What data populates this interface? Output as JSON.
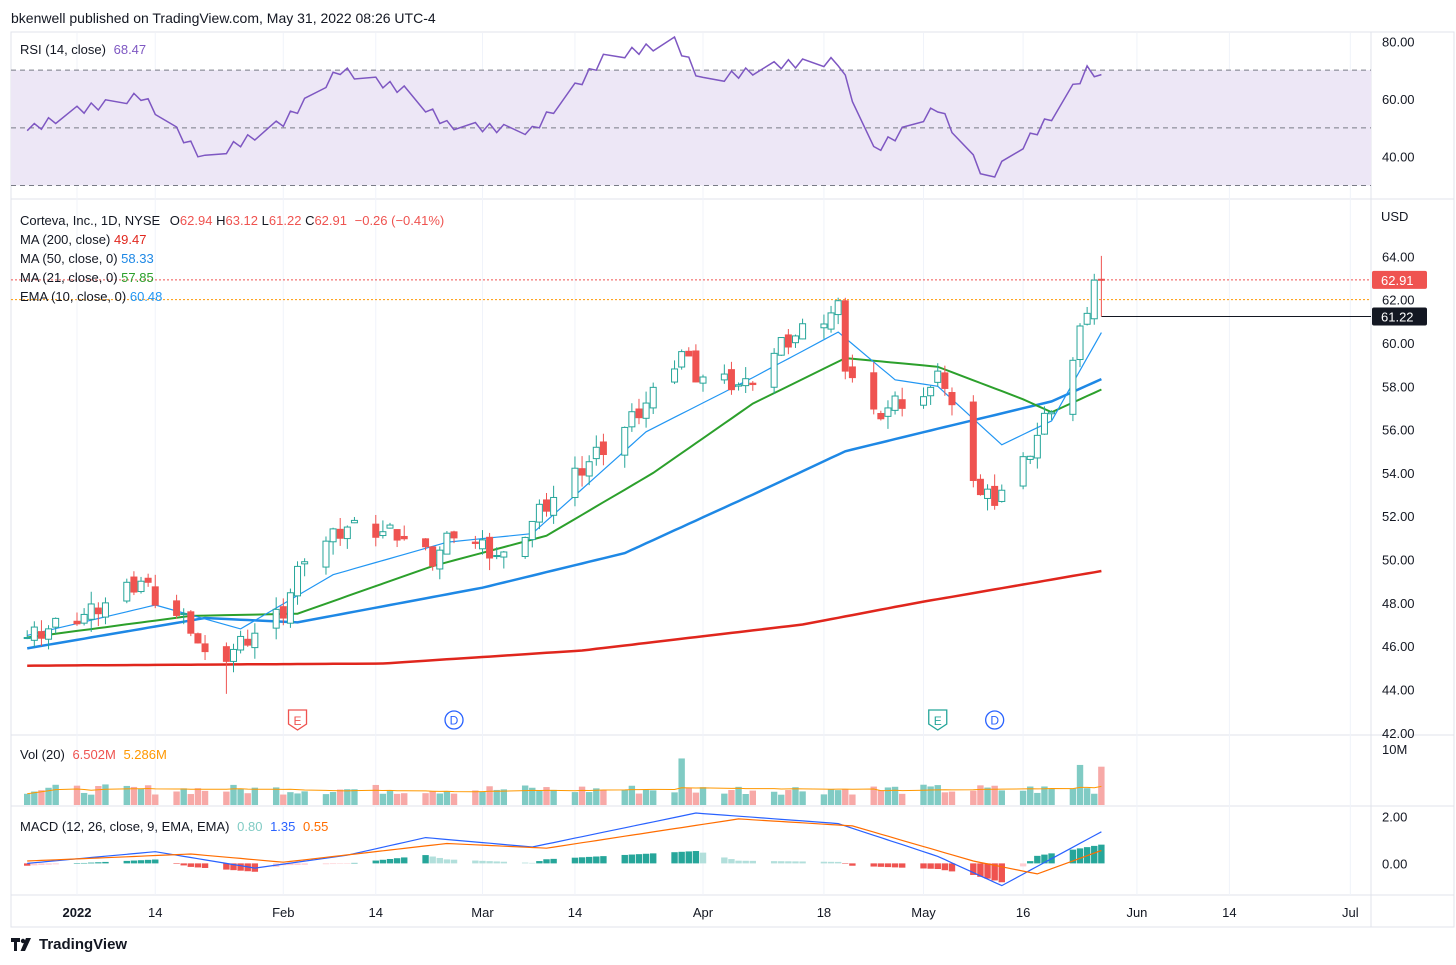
{
  "header": {
    "published": "bkenwell published on TradingView.com, May 31, 2022 08:26 UTC-4"
  },
  "footer": {
    "brand": "TradingView",
    "logo_icon": "tradingview-logo-icon"
  },
  "colors": {
    "up": "#26a69a",
    "down": "#ef5350",
    "ma200": "#e0261d",
    "ma50": "#1e88e5",
    "ma21": "#2ca02c",
    "ema10": "#2196f3",
    "rsi": "#7e57c2",
    "rsi_band": "#ede7f6",
    "vol_ma": "#ff9800",
    "macd": "#2962ff",
    "signal": "#ff6d00"
  },
  "rsi": {
    "label": "RSI (14, close)",
    "value": "68.47",
    "axis_ticks": [
      "80.00",
      "60.00",
      "40.00"
    ],
    "levels": [
      70,
      50,
      30
    ],
    "ylim": [
      25.3,
      82.9
    ]
  },
  "price": {
    "symbol_line": "Corteva, Inc., 1D, NYSE",
    "ohlc": {
      "o_label": "O",
      "o": "62.94",
      "h_label": "H",
      "h": "63.12",
      "l_label": "L",
      "l": "61.22",
      "c_label": "C",
      "c": "62.91",
      "change": "−0.26 (−0.41%)"
    },
    "indicators": [
      {
        "label": "MA (200, close)",
        "value": "49.47",
        "color": "#e0261d"
      },
      {
        "label": "MA (50, close, 0)",
        "value": "58.33",
        "color": "#1e88e5"
      },
      {
        "label": "MA (21, close, 0)",
        "value": "57.85",
        "color": "#2ca02c"
      },
      {
        "label": "EMA (10, close, 0)",
        "value": "60.48",
        "color": "#2196f3"
      }
    ],
    "currency": "USD",
    "axis_ticks": [
      "64.00",
      "62.00",
      "60.00",
      "58.00",
      "56.00",
      "54.00",
      "52.00",
      "50.00",
      "48.00",
      "46.00",
      "44.00",
      "42.00"
    ],
    "last_price_label": "62.91",
    "low_label": "61.22",
    "ylim": [
      41.9,
      66.6
    ]
  },
  "volume": {
    "label": "Vol (20)",
    "value": "6.502M",
    "ma_value": "5.286M",
    "axis_ticks": [
      "10M"
    ],
    "ylim_m": [
      0,
      11.2
    ]
  },
  "macd": {
    "label": "MACD (12, 26, close, 9, EMA, EMA)",
    "hist": "0.80",
    "macd": "1.35",
    "signal": "0.55",
    "axis_ticks": [
      "2.00",
      "0.00"
    ],
    "ylim": [
      -1.35,
      2.45
    ]
  },
  "time_axis": [
    "2022",
    "14",
    "Feb",
    "14",
    "Mar",
    "14",
    "Apr",
    "18",
    "May",
    "16",
    "Jun",
    "14",
    "Jul"
  ],
  "events": [
    {
      "type": "E",
      "date": "2022-02-03",
      "color": "#ef5350",
      "icon": "earnings-flag-icon"
    },
    {
      "type": "D",
      "date": "2022-02-25",
      "color": "#2962ff",
      "icon": "dividend-circle-icon"
    },
    {
      "type": "E",
      "date": "2022-05-04",
      "color": "#26a69a",
      "icon": "earnings-flag-icon"
    },
    {
      "type": "D",
      "date": "2022-05-12",
      "color": "#2962ff",
      "icon": "dividend-circle-icon"
    }
  ],
  "chart_data": {
    "type": "candlestick",
    "title": "Corteva, Inc., 1D, NYSE",
    "date_range": [
      "2021-12-27",
      "2022-05-27"
    ],
    "ohlc_anchors": [
      {
        "date": "2021-12-27",
        "c": 46.4
      },
      {
        "date": "2022-01-05",
        "c": 47.6
      },
      {
        "date": "2022-01-12",
        "c": 49.0
      },
      {
        "date": "2022-01-14",
        "c": 48.2
      },
      {
        "date": "2022-01-19",
        "c": 46.9
      },
      {
        "date": "2022-01-21",
        "c": 45.4
      },
      {
        "date": "2022-01-24",
        "l": 43.8,
        "c": 45.6
      },
      {
        "date": "2022-02-01",
        "c": 47.6
      },
      {
        "date": "2022-02-04",
        "c": 50.2
      },
      {
        "date": "2022-02-10",
        "c": 51.5
      },
      {
        "date": "2022-02-17",
        "c": 51.2
      },
      {
        "date": "2022-02-22",
        "c": 50.0
      },
      {
        "date": "2022-02-25",
        "c": 51.3
      },
      {
        "date": "2022-03-04",
        "c": 50.0
      },
      {
        "date": "2022-03-09",
        "c": 52.2
      },
      {
        "date": "2022-03-15",
        "c": 54.2
      },
      {
        "date": "2022-03-21",
        "c": 56.1
      },
      {
        "date": "2022-03-25",
        "c": 57.6
      },
      {
        "date": "2022-03-29",
        "c": 59.6
      },
      {
        "date": "2022-03-31",
        "c": 58.5
      },
      {
        "date": "2022-04-07",
        "c": 58.0
      },
      {
        "date": "2022-04-12",
        "c": 59.9
      },
      {
        "date": "2022-04-20",
        "c": 61.6
      },
      {
        "date": "2022-04-21",
        "c": 59.0
      },
      {
        "date": "2022-04-25",
        "c": 56.6
      },
      {
        "date": "2022-04-28",
        "c": 57.2
      },
      {
        "date": "2022-05-03",
        "c": 57.6
      },
      {
        "date": "2022-05-04",
        "c": 59.0
      },
      {
        "date": "2022-05-06",
        "c": 56.8
      },
      {
        "date": "2022-05-10",
        "c": 53.0
      },
      {
        "date": "2022-05-12",
        "l": 52.3,
        "c": 52.8
      },
      {
        "date": "2022-05-16",
        "c": 54.4
      },
      {
        "date": "2022-05-19",
        "c": 56.4
      },
      {
        "date": "2022-05-23",
        "c": 59.2
      },
      {
        "date": "2022-05-26",
        "c": 62.9
      },
      {
        "date": "2022-05-27",
        "o": 62.94,
        "h": 63.12,
        "l": 61.22,
        "c": 62.91
      }
    ],
    "ma200": [
      {
        "date": "2021-12-27",
        "v": 45.1
      },
      {
        "date": "2022-02-15",
        "v": 45.2
      },
      {
        "date": "2022-03-15",
        "v": 45.8
      },
      {
        "date": "2022-04-15",
        "v": 47.0
      },
      {
        "date": "2022-05-01",
        "v": 48.0
      },
      {
        "date": "2022-05-27",
        "v": 49.47
      }
    ],
    "ma50": [
      {
        "date": "2021-12-27",
        "v": 45.9
      },
      {
        "date": "2022-01-21",
        "v": 47.3
      },
      {
        "date": "2022-02-03",
        "v": 47.1
      },
      {
        "date": "2022-03-01",
        "v": 48.7
      },
      {
        "date": "2022-03-21",
        "v": 50.3
      },
      {
        "date": "2022-04-08",
        "v": 53.0
      },
      {
        "date": "2022-04-21",
        "v": 55.0
      },
      {
        "date": "2022-05-06",
        "v": 56.2
      },
      {
        "date": "2022-05-20",
        "v": 57.3
      },
      {
        "date": "2022-05-27",
        "v": 58.33
      }
    ],
    "ma21": [
      {
        "date": "2021-12-27",
        "v": 46.4
      },
      {
        "date": "2022-01-19",
        "v": 47.4
      },
      {
        "date": "2022-02-03",
        "v": 47.5
      },
      {
        "date": "2022-02-22",
        "v": 49.7
      },
      {
        "date": "2022-03-10",
        "v": 51.1
      },
      {
        "date": "2022-03-25",
        "v": 54.0
      },
      {
        "date": "2022-04-08",
        "v": 57.2
      },
      {
        "date": "2022-04-21",
        "v": 59.3
      },
      {
        "date": "2022-05-04",
        "v": 58.9
      },
      {
        "date": "2022-05-16",
        "v": 57.4
      },
      {
        "date": "2022-05-20",
        "v": 56.8
      },
      {
        "date": "2022-05-27",
        "v": 57.85
      }
    ],
    "ema10": [
      {
        "date": "2021-12-27",
        "v": 46.5
      },
      {
        "date": "2022-01-14",
        "v": 47.9
      },
      {
        "date": "2022-01-26",
        "v": 46.8
      },
      {
        "date": "2022-02-08",
        "v": 49.3
      },
      {
        "date": "2022-02-24",
        "v": 50.8
      },
      {
        "date": "2022-03-08",
        "v": 51.2
      },
      {
        "date": "2022-03-24",
        "v": 55.9
      },
      {
        "date": "2022-04-08",
        "v": 58.4
      },
      {
        "date": "2022-04-20",
        "v": 60.5
      },
      {
        "date": "2022-04-28",
        "v": 58.3
      },
      {
        "date": "2022-05-04",
        "v": 58.0
      },
      {
        "date": "2022-05-13",
        "v": 55.3
      },
      {
        "date": "2022-05-20",
        "v": 56.4
      },
      {
        "date": "2022-05-27",
        "v": 60.48
      }
    ],
    "rsi_series": [
      {
        "date": "2021-12-27",
        "v": 49
      },
      {
        "date": "2022-01-03",
        "v": 56
      },
      {
        "date": "2022-01-12",
        "v": 61
      },
      {
        "date": "2022-01-21",
        "v": 39
      },
      {
        "date": "2022-02-01",
        "v": 52
      },
      {
        "date": "2022-02-09",
        "v": 70
      },
      {
        "date": "2022-02-18",
        "v": 63
      },
      {
        "date": "2022-02-24",
        "v": 51
      },
      {
        "date": "2022-03-08",
        "v": 49
      },
      {
        "date": "2022-03-18",
        "v": 74
      },
      {
        "date": "2022-03-28",
        "v": 80
      },
      {
        "date": "2022-04-01",
        "v": 66
      },
      {
        "date": "2022-04-12",
        "v": 72
      },
      {
        "date": "2022-04-20",
        "v": 73
      },
      {
        "date": "2022-04-25",
        "v": 42
      },
      {
        "date": "2022-05-04",
        "v": 57
      },
      {
        "date": "2022-05-11",
        "v": 32
      },
      {
        "date": "2022-05-20",
        "v": 54
      },
      {
        "date": "2022-05-25",
        "v": 70
      },
      {
        "date": "2022-05-27",
        "v": 68.47
      }
    ],
    "macd_series": [
      {
        "date": "2021-12-27",
        "v": 0.0
      },
      {
        "date": "2022-01-14",
        "v": 0.5
      },
      {
        "date": "2022-01-28",
        "v": -0.2
      },
      {
        "date": "2022-02-10",
        "v": 0.35
      },
      {
        "date": "2022-02-21",
        "v": 1.1
      },
      {
        "date": "2022-03-08",
        "v": 0.7
      },
      {
        "date": "2022-03-31",
        "v": 2.15
      },
      {
        "date": "2022-04-20",
        "v": 1.7
      },
      {
        "date": "2022-05-04",
        "v": 0.3
      },
      {
        "date": "2022-05-13",
        "v": -0.95
      },
      {
        "date": "2022-05-27",
        "v": 1.35
      }
    ],
    "signal_series": [
      {
        "date": "2021-12-27",
        "v": 0.1
      },
      {
        "date": "2022-01-19",
        "v": 0.4
      },
      {
        "date": "2022-02-01",
        "v": 0.05
      },
      {
        "date": "2022-02-24",
        "v": 0.85
      },
      {
        "date": "2022-03-10",
        "v": 0.65
      },
      {
        "date": "2022-04-06",
        "v": 1.9
      },
      {
        "date": "2022-04-22",
        "v": 1.6
      },
      {
        "date": "2022-05-09",
        "v": 0.1
      },
      {
        "date": "2022-05-18",
        "v": -0.45
      },
      {
        "date": "2022-05-27",
        "v": 0.55
      }
    ],
    "volume_m": {
      "typical": 2.5,
      "max": 7.9,
      "last": 6.502,
      "ma20_last": 5.286
    }
  }
}
